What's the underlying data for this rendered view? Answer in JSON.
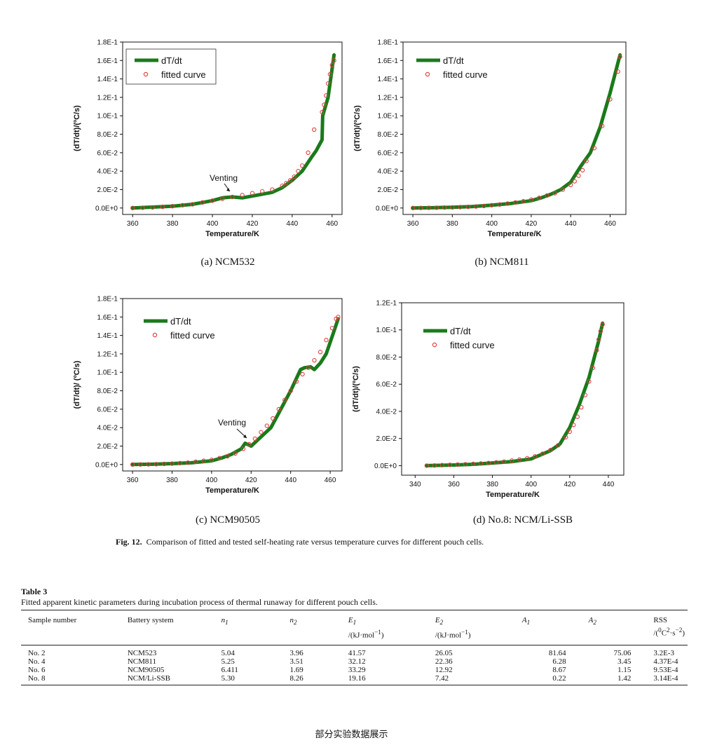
{
  "charts": [
    {
      "panel": "a",
      "caption": "(a) NCM532",
      "y_ticks": [
        "0.0E+0",
        "2.0E-2",
        "4.0E-2",
        "6.0E-2",
        "8.0E-2",
        "1.0E-1",
        "1.2E-1",
        "1.4E-1",
        "1.6E-1",
        "1.8E-1"
      ],
      "x_ticks": [
        "360",
        "380",
        "400",
        "420",
        "440",
        "460"
      ],
      "ylabel": "(dT/dt)/(ºC/s)",
      "xlabel": "Temperature/K",
      "legend": [
        "dT/dt",
        "fitted curve"
      ],
      "annotation": "Venting"
    },
    {
      "panel": "b",
      "caption": "(b) NCM811",
      "y_ticks": [
        "0.0E+0",
        "2.0E-2",
        "4.0E-2",
        "6.0E-2",
        "8.0E-2",
        "1.0E-1",
        "1.2E-1",
        "1.4E-1",
        "1.6E-1",
        "1.8E-1"
      ],
      "x_ticks": [
        "360",
        "380",
        "400",
        "420",
        "440",
        "460"
      ],
      "ylabel": "(dT/dt)/(ºC/s)",
      "xlabel": "Temperature/K",
      "legend": [
        "dT/dt",
        "fitted curve"
      ],
      "annotation": ""
    },
    {
      "panel": "c",
      "caption": "(c) NCM90505",
      "y_ticks": [
        "0.0E+0",
        "2.0E-2",
        "4.0E-2",
        "6.0E-2",
        "8.0E-2",
        "1.0E-1",
        "1.2E-1",
        "1.4E-1",
        "1.6E-1",
        "1.8E-1"
      ],
      "x_ticks": [
        "360",
        "380",
        "400",
        "420",
        "440",
        "460"
      ],
      "ylabel": "(dT/dt)/ (ºC/s)",
      "xlabel": "Temperature/K",
      "legend": [
        "dT/dt",
        "fitted curve"
      ],
      "annotation": "Venting"
    },
    {
      "panel": "d",
      "caption": "(d) No.8: NCM/Li-SSB",
      "y_ticks": [
        "0.0E+0",
        "2.0E-2",
        "4.0E-2",
        "6.0E-2",
        "8.0E-2",
        "1.0E-1",
        "1.2E-1"
      ],
      "x_ticks": [
        "340",
        "360",
        "380",
        "400",
        "420",
        "440"
      ],
      "ylabel": "(dT/dt)/(ºC/s)",
      "xlabel": "Temperature/K",
      "legend": [
        "dT/dt",
        "fitted curve"
      ],
      "annotation": ""
    }
  ],
  "chart_data": [
    {
      "type": "line",
      "xlabel": "Temperature/K",
      "ylabel": "(dT/dt)/(ºC/s)",
      "xlim": [
        355,
        465
      ],
      "ylim": [
        -0.007,
        0.18
      ],
      "series": [
        {
          "name": "dT/dt",
          "color": "#1a7a1a",
          "x": [
            360,
            370,
            380,
            390,
            395,
            400,
            405,
            410,
            415,
            420,
            425,
            430,
            435,
            440,
            445,
            450,
            452,
            455,
            455.3,
            458,
            461
          ],
          "y": [
            0.0,
            0.001,
            0.002,
            0.004,
            0.006,
            0.008,
            0.011,
            0.012,
            0.011,
            0.013,
            0.015,
            0.017,
            0.022,
            0.03,
            0.04,
            0.056,
            0.062,
            0.074,
            0.1,
            0.12,
            0.166
          ]
        },
        {
          "name": "fitted curve",
          "color": "#e04040",
          "x": [
            360,
            365,
            370,
            375,
            380,
            385,
            390,
            395,
            400,
            405,
            410,
            415,
            420,
            425,
            430,
            435,
            437,
            439,
            441,
            443,
            445,
            448,
            451,
            455,
            456,
            457,
            458,
            459,
            460,
            461
          ],
          "y": [
            0.0,
            0.0003,
            0.0007,
            0.0013,
            0.002,
            0.003,
            0.004,
            0.006,
            0.008,
            0.01,
            0.012,
            0.014,
            0.016,
            0.018,
            0.02,
            0.024,
            0.027,
            0.03,
            0.034,
            0.04,
            0.046,
            0.06,
            0.085,
            0.104,
            0.112,
            0.122,
            0.135,
            0.145,
            0.155,
            0.16
          ]
        }
      ]
    },
    {
      "type": "line",
      "xlabel": "Temperature/K",
      "ylabel": "(dT/dt)/(ºC/s)",
      "xlim": [
        355,
        468
      ],
      "ylim": [
        -0.007,
        0.18
      ],
      "series": [
        {
          "name": "dT/dt",
          "color": "#1a7a1a",
          "x": [
            360,
            370,
            380,
            390,
            400,
            410,
            420,
            425,
            430,
            435,
            440,
            445,
            450,
            455,
            460,
            465
          ],
          "y": [
            0.0,
            0.0003,
            0.0008,
            0.0015,
            0.003,
            0.005,
            0.008,
            0.011,
            0.015,
            0.02,
            0.028,
            0.045,
            0.06,
            0.088,
            0.125,
            0.166
          ]
        },
        {
          "name": "fitted curve",
          "color": "#e04040",
          "x": [
            360,
            364,
            368,
            372,
            376,
            380,
            384,
            388,
            392,
            396,
            400,
            404,
            408,
            412,
            416,
            420,
            424,
            428,
            432,
            436,
            440,
            442,
            444,
            446,
            448,
            452,
            456,
            460,
            464,
            465
          ],
          "y": [
            0.0,
            0.0001,
            0.0002,
            0.0003,
            0.0005,
            0.0007,
            0.001,
            0.0013,
            0.0017,
            0.0022,
            0.003,
            0.0038,
            0.0048,
            0.006,
            0.0073,
            0.009,
            0.011,
            0.0135,
            0.016,
            0.02,
            0.025,
            0.029,
            0.035,
            0.041,
            0.051,
            0.065,
            0.089,
            0.118,
            0.148,
            0.164
          ]
        }
      ]
    },
    {
      "type": "line",
      "xlabel": "Temperature/K",
      "ylabel": "(dT/dt)/ (ºC/s)",
      "xlim": [
        355,
        466
      ],
      "ylim": [
        -0.007,
        0.18
      ],
      "series": [
        {
          "name": "dT/dt",
          "color": "#1a7a1a",
          "x": [
            360,
            370,
            380,
            390,
            400,
            405,
            410,
            415,
            417,
            420,
            425,
            430,
            435,
            440,
            445,
            447,
            450,
            452,
            455,
            458,
            462,
            464
          ],
          "y": [
            0.0,
            0.0003,
            0.001,
            0.002,
            0.004,
            0.007,
            0.011,
            0.017,
            0.023,
            0.02,
            0.03,
            0.04,
            0.06,
            0.08,
            0.103,
            0.105,
            0.106,
            0.103,
            0.11,
            0.12,
            0.145,
            0.158
          ]
        },
        {
          "name": "fitted curve",
          "color": "#e04040",
          "x": [
            360,
            364,
            368,
            372,
            376,
            380,
            384,
            388,
            392,
            396,
            400,
            404,
            408,
            412,
            416,
            419,
            422,
            425,
            428,
            431,
            434,
            437,
            440,
            443,
            446,
            449,
            452,
            455,
            458,
            461,
            463,
            464
          ],
          "y": [
            0.0,
            0.0001,
            0.0002,
            0.0004,
            0.0007,
            0.001,
            0.0015,
            0.002,
            0.003,
            0.004,
            0.005,
            0.007,
            0.009,
            0.012,
            0.017,
            0.022,
            0.028,
            0.035,
            0.042,
            0.05,
            0.06,
            0.07,
            0.08,
            0.09,
            0.098,
            0.105,
            0.113,
            0.122,
            0.135,
            0.148,
            0.158,
            0.16
          ]
        }
      ]
    },
    {
      "type": "line",
      "xlabel": "Temperature/K",
      "ylabel": "(dT/dt)/(ºC/s)",
      "xlim": [
        333,
        448
      ],
      "ylim": [
        -0.007,
        0.12
      ],
      "series": [
        {
          "name": "dT/dt",
          "color": "#1a7a1a",
          "x": [
            346,
            360,
            370,
            380,
            390,
            400,
            405,
            410,
            415,
            420,
            425,
            430,
            435,
            437
          ],
          "y": [
            0.0,
            0.0005,
            0.001,
            0.002,
            0.003,
            0.005,
            0.008,
            0.011,
            0.016,
            0.028,
            0.045,
            0.065,
            0.092,
            0.105
          ]
        },
        {
          "name": "fitted curve",
          "color": "#e04040",
          "x": [
            346,
            350,
            354,
            358,
            362,
            366,
            370,
            374,
            378,
            382,
            386,
            390,
            394,
            398,
            402,
            406,
            410,
            414,
            418,
            420,
            422,
            424,
            426,
            428,
            430,
            432,
            434,
            435,
            436,
            437
          ],
          "y": [
            0.0,
            0.0002,
            0.0004,
            0.0006,
            0.0008,
            0.001,
            0.0013,
            0.0016,
            0.002,
            0.0025,
            0.003,
            0.0037,
            0.0045,
            0.0055,
            0.0068,
            0.0088,
            0.0115,
            0.015,
            0.021,
            0.025,
            0.03,
            0.036,
            0.043,
            0.052,
            0.062,
            0.072,
            0.085,
            0.093,
            0.099,
            0.104
          ]
        }
      ]
    }
  ],
  "figure_caption": {
    "label": "Fig. 12.",
    "text": "Comparison of fitted and tested self-heating rate versus temperature curves for different pouch cells."
  },
  "table": {
    "title": "Table 3",
    "description": "Fitted apparent kinetic parameters during incubation process of thermal runaway for different pouch cells.",
    "headers": [
      {
        "main": "Sample number",
        "unit": ""
      },
      {
        "main": "Battery system",
        "unit": ""
      },
      {
        "main": "n1",
        "unit": ""
      },
      {
        "main": "n2",
        "unit": ""
      },
      {
        "main": "E1",
        "unit": "/(kJ·mol−1)"
      },
      {
        "main": "E2",
        "unit": "/(kJ·mol−1)"
      },
      {
        "main": "A1",
        "unit": ""
      },
      {
        "main": "A2",
        "unit": ""
      },
      {
        "main": "RSS",
        "unit": "/(ºC2·s−2)"
      }
    ],
    "rows": [
      [
        "No. 2",
        "NCM523",
        "5.04",
        "3.96",
        "41.57",
        "26.05",
        "81.64",
        "75.06",
        "3.2E-3"
      ],
      [
        "No. 4",
        "NCM811",
        "5.25",
        "3.51",
        "32.12",
        "22.36",
        "6.28",
        "3.45",
        "4.37E-4"
      ],
      [
        "No. 6",
        "NCM90505",
        "6.411",
        "1.69",
        "33.29",
        "12.92",
        "8.67",
        "1.15",
        "9.53E-4"
      ],
      [
        "No. 8",
        "NCM/Li-SSB",
        "5.30",
        "8.26",
        "19.16",
        "7.42",
        "0.22",
        "1.42",
        "3.14E-4"
      ]
    ]
  },
  "footer": "部分实验数据展示"
}
